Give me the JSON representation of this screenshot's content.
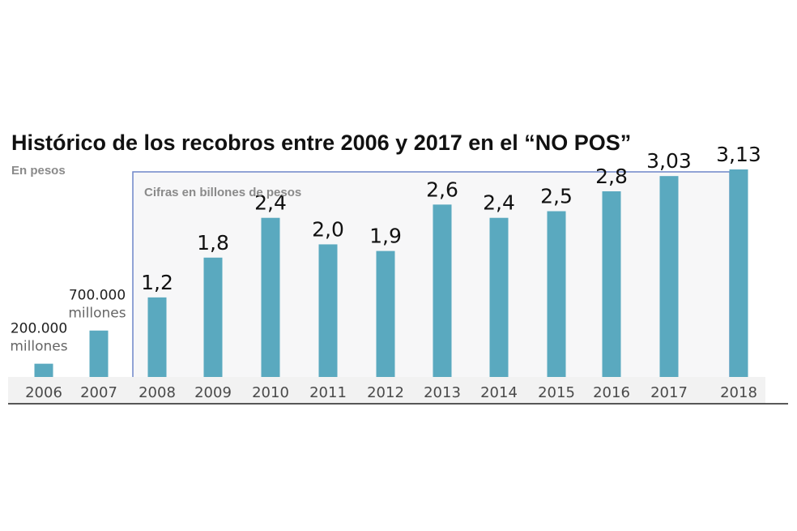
{
  "chart_data": {
    "type": "bar",
    "title": "Histórico de los recobros entre 2006 y 2017 en el “NO POS”",
    "subtitle": "En pesos",
    "inset_label": "Cifras en billones de pesos",
    "categories": [
      "2006",
      "2007",
      "2008",
      "2009",
      "2010",
      "2011",
      "2012",
      "2013",
      "2014",
      "2015",
      "2016",
      "2017",
      "2018"
    ],
    "values": [
      0.2,
      0.7,
      1.2,
      1.8,
      2.4,
      2.0,
      1.9,
      2.6,
      2.4,
      2.5,
      2.8,
      3.03,
      3.13
    ],
    "data_labels": [
      {
        "num": "200.000",
        "unit": "millones"
      },
      {
        "num": "700.000",
        "unit": "millones"
      },
      {
        "num": "1,2"
      },
      {
        "num": "1,8"
      },
      {
        "num": "2,4"
      },
      {
        "num": "2,0"
      },
      {
        "num": "1,9"
      },
      {
        "num": "2,6"
      },
      {
        "num": "2,4"
      },
      {
        "num": "2,5"
      },
      {
        "num": "2,8"
      },
      {
        "num": "3,03"
      },
      {
        "num": "3,13"
      }
    ],
    "ylim": [
      0,
      3.13
    ],
    "grid": false,
    "colors": {
      "bar": "#5aa9bf",
      "inset_border": "#6f86c9",
      "inset_fill": "#f7f7f8",
      "axis_band": "#f2f2f2"
    }
  }
}
